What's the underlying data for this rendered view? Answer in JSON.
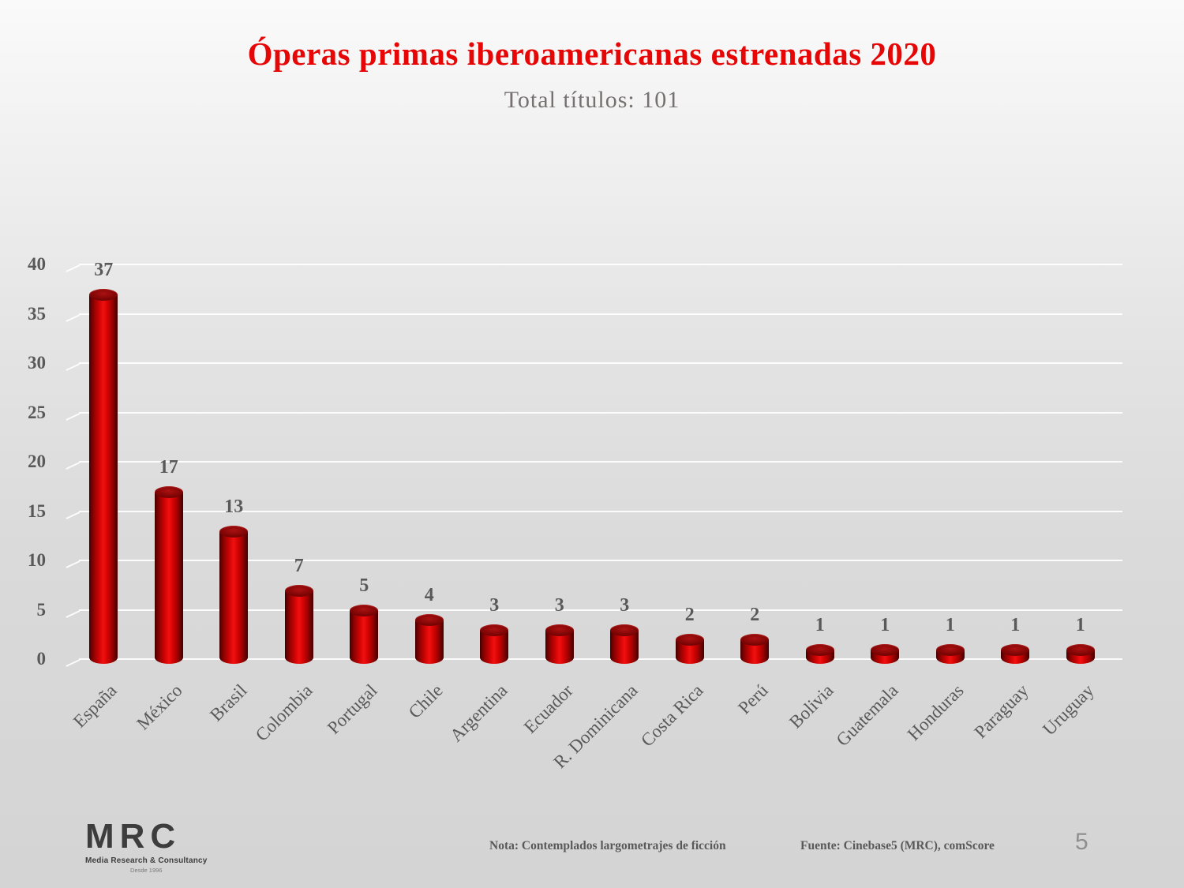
{
  "slide": {
    "title": "Óperas primas iberoamericanas estrenadas 2020",
    "subtitle": "Total títulos: 101",
    "footnote": "Nota: Contemplados largometrajes de ficción",
    "source": "Fuente: Cinebase5 (MRC), comScore",
    "page_number": "5",
    "logo": {
      "name": "MRC",
      "tagline": "Media Research & Consultancy",
      "since": "Desde 1996"
    }
  },
  "chart_data": {
    "type": "bar",
    "style": "3d-cylinder",
    "title": "Óperas primas iberoamericanas estrenadas 2020",
    "subtitle": "Total títulos: 101",
    "categories": [
      "España",
      "México",
      "Brasil",
      "Colombia",
      "Portugal",
      "Chile",
      "Argentina",
      "Ecuador",
      "R. Dominicana",
      "Costa Rica",
      "Perú",
      "Bolivia",
      "Guatemala",
      "Honduras",
      "Paraguay",
      "Uruguay"
    ],
    "values": [
      37,
      17,
      13,
      7,
      5,
      4,
      3,
      3,
      3,
      2,
      2,
      1,
      1,
      1,
      1,
      1
    ],
    "xlabel": "",
    "ylabel": "",
    "ylim": [
      0,
      40
    ],
    "yticks": [
      0,
      5,
      10,
      15,
      20,
      25,
      30,
      35,
      40
    ],
    "grid": true,
    "legend": false,
    "data_labels": true,
    "colors": {
      "bar": "#d90505",
      "bar_dark": "#6e0303",
      "title": "#e60606",
      "subtitle": "#767171",
      "labels": "#595959",
      "gridline": "#ffffff"
    }
  }
}
